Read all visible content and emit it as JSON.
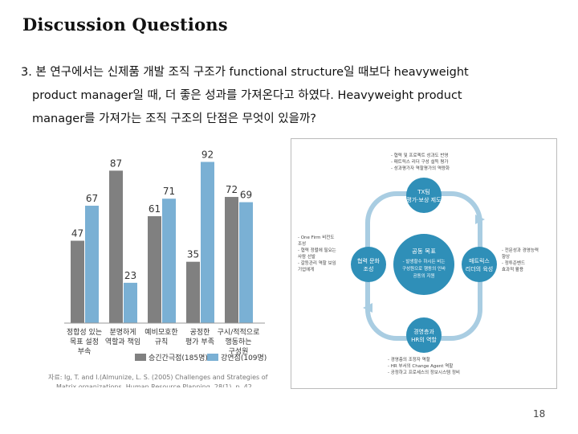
{
  "slide": {
    "title": "Discussion Questions",
    "question_line1": "3. 본 연구에서는 신제품 개발 조직 구조가 functional structure일 때보다 heavyweight",
    "question_line2": "product manager일 때, 더 좋은 성과를 가져온다고 하였다. Heavyweight product",
    "question_line3": "manager를 가져가는 조직 구조의 단점은 무엇이 있을까?",
    "page_number": "18"
  },
  "chart_data": {
    "type": "bar",
    "categories": [
      [
        "정합성 있는",
        "목표 설정",
        "부속"
      ],
      [
        "분명하게",
        "역할과 책임"
      ],
      [
        "예비모호한",
        "규칙"
      ],
      [
        "공정한",
        "평가 부족"
      ],
      [
        "구시/적적으로",
        "행동하는",
        "구성원"
      ]
    ],
    "series": [
      {
        "name": "승긴간극점(185명)",
        "color": "#808080",
        "values": [
          47,
          87,
          61,
          35,
          72
        ]
      },
      {
        "name": "강연점(109명)",
        "color": "#7ab0d4",
        "values": [
          67,
          23,
          71,
          92,
          69
        ]
      }
    ],
    "ylim": [
      0,
      100
    ],
    "source_line1": "자료: Ig, T. and I.(Almunize, L. S. (2005) Challenges and Strategies of",
    "source_line2": "Matrix organizations, Human Resource Planning, 28(1), p. 42"
  },
  "diagram": {
    "center_title": "공동 목표",
    "center_body": [
      "- 발생할수 하시든 비는",
      "구성원으로 행동의 인바",
      "공동의 지원"
    ],
    "top_title": [
      "TX팀",
      "평가·보상 제도"
    ],
    "left_title": [
      "협력 문화",
      "조성"
    ],
    "right_title": [
      "매트릭스",
      "리더의 육성"
    ],
    "bottom_title": [
      "경영층과",
      "HR의 역할"
    ],
    "top_notes": [
      "- 협력 및 프로젝트 성과도 반영",
      "- 매트릭스 리더 구성 설득 평가",
      "- 성과평가자 역할평가의 역량화"
    ],
    "left_notes": [
      "- One Firm 비전도",
      "  조성",
      "- 협력 정렬에 필요는",
      "  사람 선발",
      "- 갈등관리 역할 보임",
      "  기업에게"
    ],
    "right_notes": [
      "- 전문성과 경영능력",
      "  향상",
      "- 정투준벤드",
      "  효과적 활용"
    ],
    "bottom_notes": [
      "- 경영층의 조정자 역할",
      "- HR 부서의 Change Agent 역할",
      "- 공정하고 프로세스의 정보시스템 정비"
    ],
    "accent": "#2f8fb8",
    "ring_color": "#a9cde2"
  }
}
